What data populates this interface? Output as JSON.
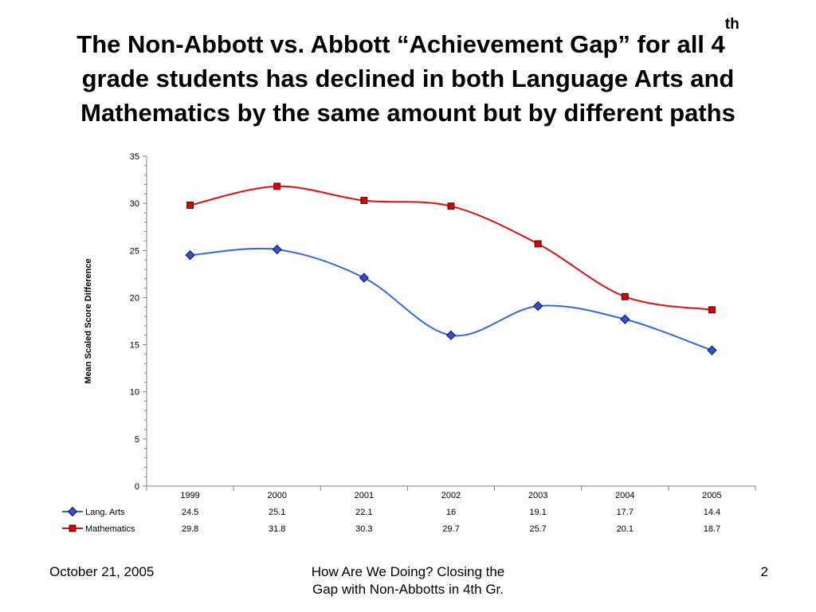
{
  "slide": {
    "title_line1_pre": "The Non-Abbott vs. Abbott “Achievement Gap” for all 4",
    "title_sup": "th",
    "title_line2": "grade students has declined in both Language Arts and",
    "title_line3": "Mathematics by the same amount but by different paths"
  },
  "chart_data": {
    "type": "line",
    "title": "",
    "xlabel": "",
    "ylabel": "Mean Scaled Score Difference",
    "categories": [
      "1999",
      "2000",
      "2001",
      "2002",
      "2003",
      "2004",
      "2005"
    ],
    "ylim": [
      0,
      35
    ],
    "yticks": [
      0,
      5,
      10,
      15,
      20,
      25,
      30,
      35
    ],
    "grid": false,
    "legend": "data-table-left",
    "smooth": true,
    "series": [
      {
        "name": "Lang. Arts",
        "values": [
          24.5,
          25.1,
          22.1,
          16,
          19.1,
          17.7,
          14.4
        ],
        "color": "#3366ee",
        "marker_color": "#2b4fe0",
        "marker": "diamond"
      },
      {
        "name": "Mathematics",
        "values": [
          29.8,
          31.8,
          30.3,
          29.7,
          25.7,
          20.1,
          18.7
        ],
        "color": "#e01010",
        "marker_color": "#e00000",
        "marker": "square"
      }
    ],
    "data_table_labels": {
      "Lang. Arts": [
        "24.5",
        "25.1",
        "22.1",
        "16",
        "19.1",
        "17.7",
        "14.4"
      ],
      "Mathematics": [
        "29.8",
        "31.8",
        "30.3",
        "29.7",
        "25.7",
        "20.1",
        "18.7"
      ]
    }
  },
  "footer": {
    "date": "October 21, 2005",
    "center_line1": "How Are We Doing? Closing the",
    "center_line2": "Gap with Non-Abbotts in 4th Gr.",
    "page": "2"
  }
}
